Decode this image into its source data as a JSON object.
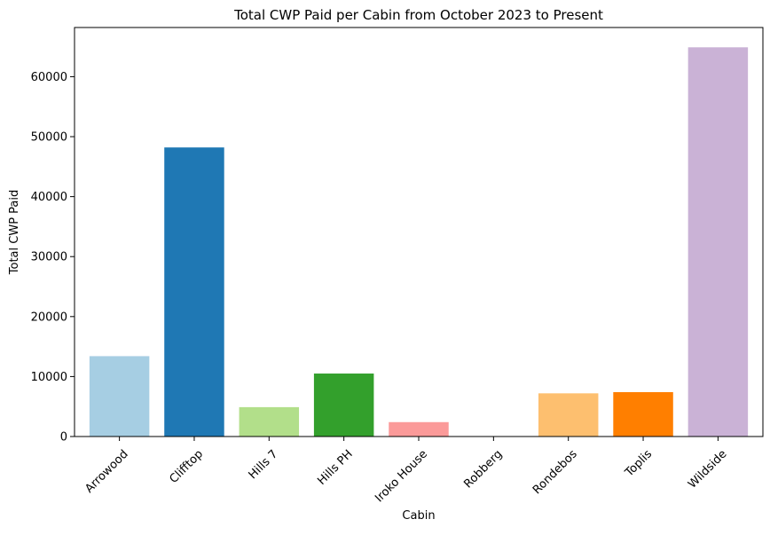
{
  "chart_data": {
    "type": "bar",
    "title": "Total CWP Paid per Cabin from October 2023 to Present",
    "xlabel": "Cabin",
    "ylabel": "Total CWP Paid",
    "categories": [
      "Arrowood",
      "Clifftop",
      "Hills 7",
      "Hills PH",
      "Iroko House",
      "Robberg",
      "Rondebos",
      "Toplis",
      "Wildside"
    ],
    "values": [
      13400,
      48200,
      4900,
      10500,
      2400,
      0,
      7200,
      7400,
      64900
    ],
    "colors": [
      "#a6cee3",
      "#1f78b4",
      "#b2df8a",
      "#33a02c",
      "#fb9a99",
      "#e31a1c",
      "#fdbf6f",
      "#ff7f00",
      "#cab2d6"
    ],
    "ylim": [
      0,
      68200
    ],
    "yticks": [
      0,
      10000,
      20000,
      30000,
      40000,
      50000,
      60000
    ],
    "ytick_labels": [
      "0",
      "10000",
      "20000",
      "30000",
      "40000",
      "50000",
      "60000"
    ],
    "xtick_rotation": 45,
    "grid": false,
    "legend": "none"
  }
}
